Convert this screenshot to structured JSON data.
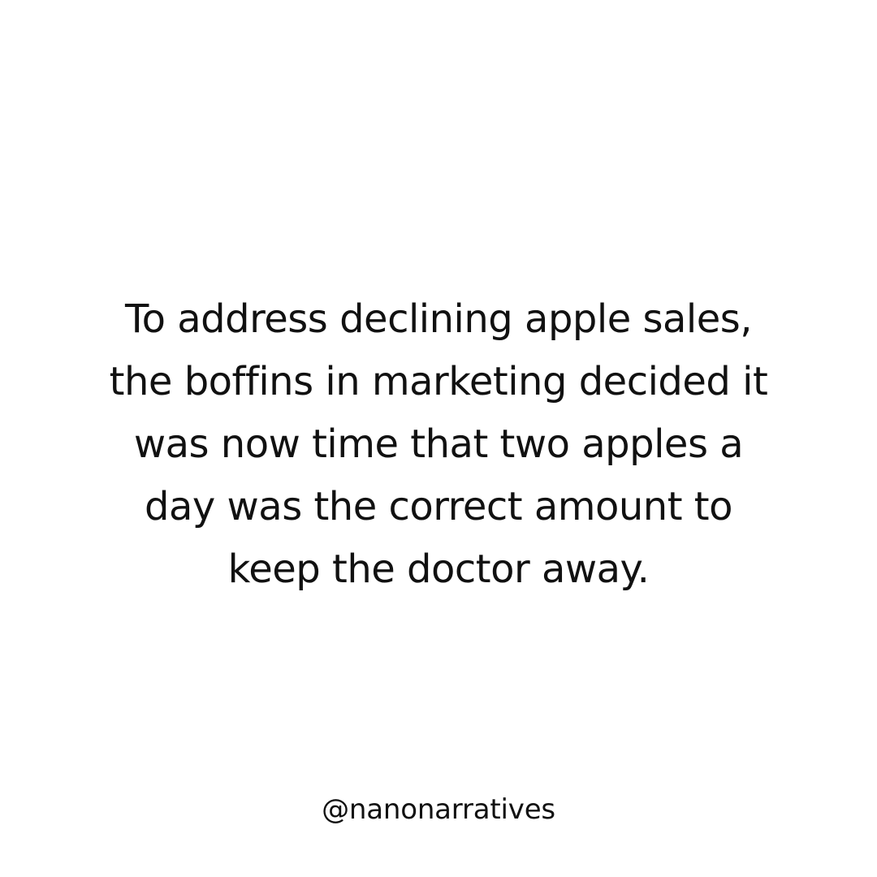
{
  "post": {
    "lines": [
      "To address declining apple sales,",
      "the boffins in marketing decided it",
      "was now time that two apples a",
      "day was the correct amount to",
      "keep the doctor away."
    ],
    "handle": "@nanonarratives"
  },
  "colors": {
    "background": "#ffffff",
    "text": "#111111"
  }
}
